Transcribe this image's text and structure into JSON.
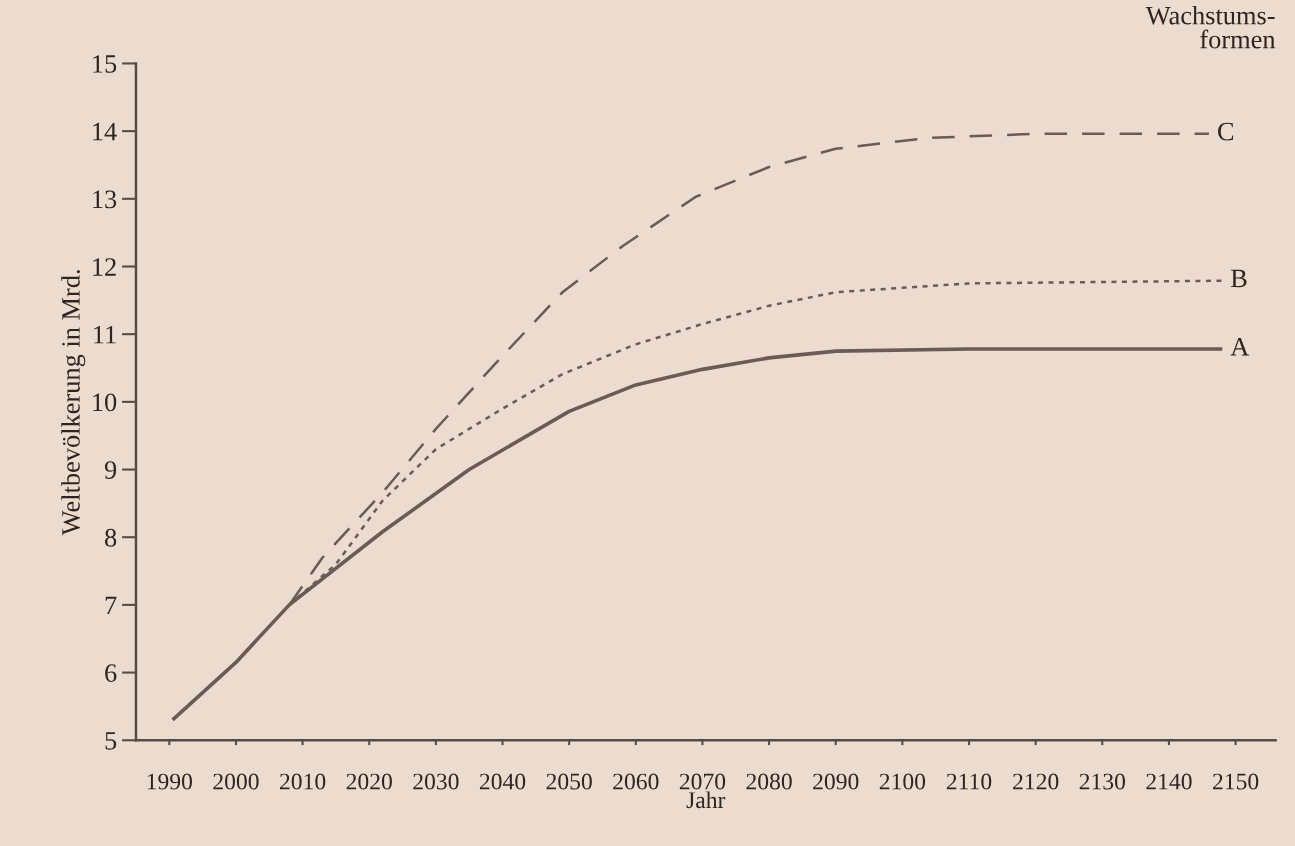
{
  "chart_data": {
    "type": "line",
    "xlabel": "Jahr",
    "ylabel": "Weltbevölkerung in Mrd.",
    "legend_title": "Wachstums-\nformen",
    "xlim": [
      1985,
      2156
    ],
    "ylim": [
      5,
      15
    ],
    "xticks": [
      1990,
      2000,
      2010,
      2020,
      2030,
      2040,
      2050,
      2060,
      2070,
      2080,
      2090,
      2100,
      2110,
      2120,
      2130,
      2140,
      2150
    ],
    "yticks": [
      5,
      6,
      7,
      8,
      9,
      10,
      11,
      12,
      13,
      14,
      15
    ],
    "grid": false,
    "legend": false,
    "series": [
      {
        "name": "A",
        "color": "#6b5a55",
        "line_style": "solid",
        "x": [
          1990.5,
          2000,
          2008,
          2022,
          2035,
          2050,
          2060,
          2070,
          2080,
          2090,
          2110,
          2148
        ],
        "values": [
          5.3,
          6.15,
          7.0,
          8.08,
          9.0,
          9.86,
          10.25,
          10.48,
          10.65,
          10.75,
          10.78,
          10.78
        ]
      },
      {
        "name": "B",
        "color": "#6b5a55",
        "line_style": "dotted",
        "x": [
          2008,
          2015,
          2022,
          2030,
          2040,
          2049,
          2060,
          2070,
          2080,
          2090,
          2110,
          2148
        ],
        "values": [
          7.0,
          7.6,
          8.54,
          9.3,
          9.9,
          10.41,
          10.85,
          11.15,
          11.42,
          11.62,
          11.75,
          11.79
        ]
      },
      {
        "name": "C",
        "color": "#6b5a55",
        "line_style": "dashed",
        "x": [
          2008,
          2013,
          2022,
          2030,
          2040,
          2049,
          2058,
          2069,
          2080,
          2090,
          2104,
          2120,
          2146
        ],
        "values": [
          7.0,
          7.7,
          8.66,
          9.6,
          10.68,
          11.62,
          12.3,
          13.03,
          13.47,
          13.74,
          13.9,
          13.96,
          13.96
        ]
      }
    ]
  }
}
